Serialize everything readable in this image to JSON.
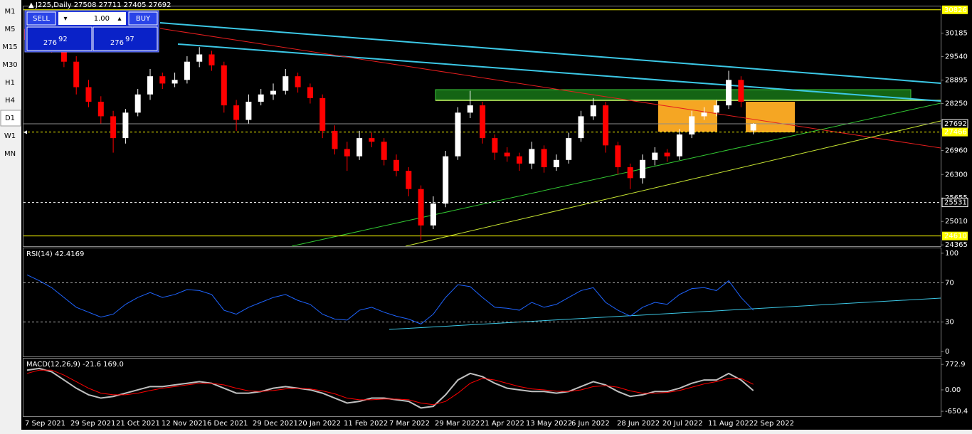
{
  "timeframes": [
    "M1",
    "M5",
    "M15",
    "M30",
    "H1",
    "H4",
    "D1",
    "W1",
    "MN"
  ],
  "active_timeframe": "D1",
  "trade_panel": {
    "sell": "SELL",
    "buy": "BUY",
    "lot": "1.00",
    "sell_big": "276",
    "sell_small": "92",
    "buy_big": "276",
    "buy_small": "97"
  },
  "chart_data": [
    {
      "type": "candlestick",
      "title": "J225,Daily 27508 27711 27405 27692",
      "up_color": "#ffffff",
      "down_color": "#ff0000",
      "open": [
        30300,
        30000,
        30150,
        29800,
        29400,
        28700,
        28300,
        27900,
        27300,
        28000,
        28500,
        29000,
        28800,
        28900,
        29400,
        29600,
        29300,
        28200,
        27800,
        28300,
        28500,
        28600,
        29000,
        28700,
        28400,
        27500,
        27000,
        26800,
        27300,
        27200,
        26700,
        26400,
        25900,
        24900,
        25500,
        26800,
        28000,
        28200,
        27300,
        26900,
        26800,
        26600,
        27000,
        26500,
        26700,
        27300,
        27900,
        28200,
        27100,
        26500,
        26200,
        26700,
        26900,
        26800,
        27400,
        27900,
        28000,
        28200,
        28900,
        27508
      ],
      "high": [
        30450,
        30350,
        30300,
        29950,
        29550,
        28900,
        28450,
        28050,
        28100,
        28650,
        29200,
        29100,
        29100,
        29550,
        29800,
        29700,
        29400,
        28350,
        28500,
        28650,
        28800,
        29200,
        29100,
        28800,
        28500,
        27650,
        27200,
        27500,
        27450,
        27300,
        26850,
        26500,
        26000,
        25700,
        26950,
        28150,
        28600,
        28300,
        27400,
        27050,
        26900,
        27200,
        27100,
        26850,
        27450,
        28050,
        28400,
        28300,
        27200,
        26600,
        26850,
        27050,
        27000,
        27550,
        28050,
        28150,
        28350,
        29150,
        29000,
        27711
      ],
      "low": [
        29850,
        29850,
        29650,
        29250,
        28500,
        28150,
        27700,
        26900,
        27150,
        27900,
        28350,
        28650,
        28700,
        28800,
        29250,
        29150,
        28000,
        27500,
        27700,
        28200,
        28350,
        28500,
        28550,
        28250,
        27300,
        26850,
        26400,
        26700,
        27050,
        26550,
        26250,
        25700,
        24500,
        24800,
        25400,
        26700,
        27850,
        27150,
        26700,
        26650,
        26400,
        26450,
        26350,
        26400,
        26600,
        27200,
        27800,
        26900,
        26300,
        25900,
        26050,
        26550,
        26650,
        26700,
        27300,
        27800,
        27900,
        28100,
        28150,
        27405
      ],
      "close": [
        30000,
        30150,
        29800,
        29400,
        28700,
        28300,
        27900,
        27300,
        28000,
        28500,
        29000,
        28800,
        28900,
        29400,
        29600,
        29300,
        28200,
        27800,
        28300,
        28500,
        28600,
        29000,
        28700,
        28400,
        27500,
        27000,
        26800,
        27300,
        27200,
        26700,
        26400,
        25900,
        24900,
        25500,
        26800,
        28000,
        28200,
        27300,
        26900,
        26800,
        26600,
        27000,
        26500,
        26700,
        27300,
        27900,
        28200,
        27100,
        26500,
        26200,
        26700,
        26900,
        26800,
        27400,
        27900,
        28000,
        28200,
        28900,
        28300,
        27692
      ],
      "ylim": [
        24330,
        30900
      ],
      "yticks": [
        30185,
        29540,
        28895,
        28250,
        26960,
        26300,
        25655,
        25010,
        24365
      ],
      "levels": [
        {
          "value": 30826,
          "color": "#ffff00",
          "dashed": false
        },
        {
          "value": 27692,
          "color": "#8c8c8c",
          "dashed": false
        },
        {
          "value": 27466,
          "color": "#ffff00",
          "dashed": true
        },
        {
          "value": 25531,
          "color": "#ffffff",
          "dashed": true
        },
        {
          "value": 24610,
          "color": "#ffff00",
          "dashed": false
        }
      ],
      "xtick_labels": [
        "7 Sep 2021",
        "29 Sep 2021",
        "21 Oct 2021",
        "12 Nov 2021",
        "6 Dec 2021",
        "29 Dec 2021",
        "20 Jan 2022",
        "11 Feb 2022",
        "7 Mar 2022",
        "29 Mar 2022",
        "21 Apr 2022",
        "13 May 2022",
        "6 Jun 2022",
        "28 Jun 2022",
        "20 Jul 2022",
        "11 Aug 2022",
        "2 Sep 2022"
      ]
    },
    {
      "type": "line",
      "title": "RSI(14) 42.4169",
      "series": [
        {
          "color": "#1e64ff",
          "values": [
            78,
            72,
            65,
            55,
            45,
            40,
            35,
            38,
            48,
            55,
            60,
            55,
            58,
            63,
            62,
            58,
            42,
            38,
            45,
            50,
            55,
            58,
            52,
            48,
            38,
            33,
            32,
            42,
            45,
            40,
            36,
            33,
            28,
            38,
            55,
            68,
            66,
            55,
            45,
            44,
            42,
            50,
            45,
            48,
            55,
            62,
            65,
            50,
            42,
            36,
            45,
            50,
            48,
            58,
            64,
            65,
            62,
            72,
            55,
            42
          ]
        }
      ],
      "ylim": [
        -5,
        105
      ],
      "yticks": [
        100,
        70,
        30,
        0
      ],
      "levels": [
        70,
        30
      ]
    },
    {
      "type": "line",
      "title": "MACD(12,26,9) -21.6 169.0",
      "series": [
        {
          "color": "#c0c0c0",
          "values": [
            600,
            650,
            550,
            300,
            50,
            -150,
            -250,
            -200,
            -100,
            0,
            100,
            100,
            150,
            200,
            250,
            200,
            50,
            -100,
            -100,
            -50,
            50,
            100,
            50,
            0,
            -100,
            -250,
            -400,
            -350,
            -250,
            -250,
            -300,
            -350,
            -550,
            -500,
            -150,
            300,
            500,
            400,
            200,
            50,
            0,
            -50,
            -50,
            -100,
            -50,
            100,
            250,
            150,
            -50,
            -200,
            -150,
            -50,
            -50,
            50,
            200,
            300,
            300,
            500,
            300,
            -21.6
          ]
        },
        {
          "color": "#ff0000",
          "values": [
            500,
            600,
            600,
            450,
            250,
            50,
            -100,
            -150,
            -150,
            -100,
            -20,
            50,
            100,
            150,
            200,
            200,
            150,
            50,
            -30,
            -50,
            -20,
            30,
            50,
            30,
            -30,
            -120,
            -250,
            -300,
            -300,
            -280,
            -280,
            -300,
            -400,
            -450,
            -350,
            -100,
            200,
            350,
            300,
            200,
            100,
            30,
            0,
            -40,
            -50,
            0,
            100,
            130,
            80,
            -30,
            -100,
            -100,
            -80,
            -20,
            80,
            180,
            250,
            350,
            350,
            169
          ]
        }
      ],
      "ylim": [
        -800,
        950
      ],
      "yticks": [
        772.9,
        {
          "value": 0,
          "label": "0.00"
        },
        -650.4
      ]
    }
  ]
}
